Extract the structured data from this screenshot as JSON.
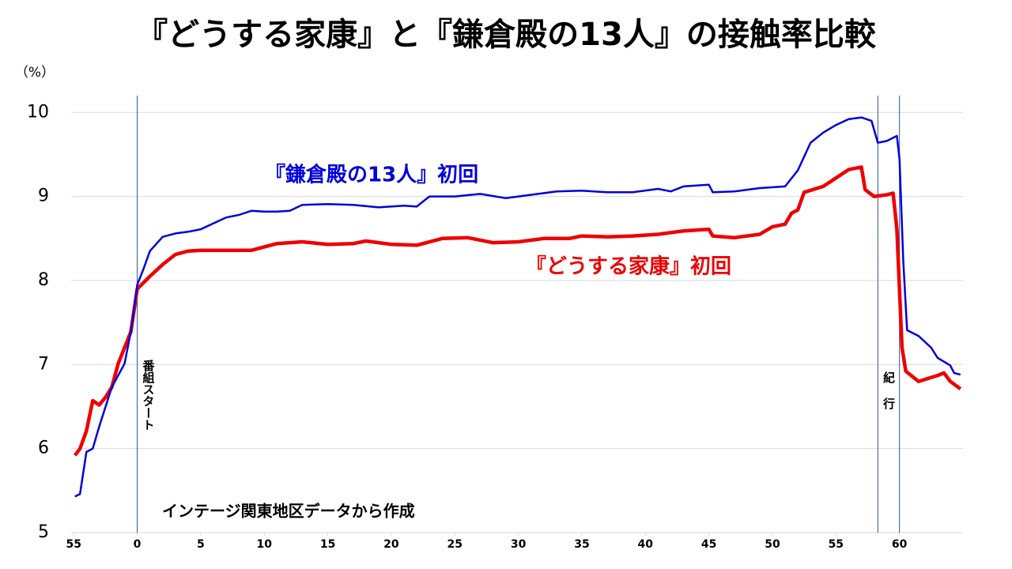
{
  "chart_data": {
    "type": "line",
    "title": "『どうする家康』と『鎌倉殿の13人』の接触率比較",
    "y_label": "（%）",
    "note": "インテージ関東地区データから作成",
    "xlim": [
      -5.2,
      65
    ],
    "xticks": [
      {
        "value": -5,
        "label": "55"
      },
      0,
      5,
      10,
      15,
      20,
      25,
      30,
      35,
      40,
      45,
      50,
      55,
      60
    ],
    "ylim": [
      5,
      10.2
    ],
    "yticks": [
      5,
      6,
      7,
      8,
      9,
      10
    ],
    "grid": true,
    "annotations": [
      {
        "text": "番組スタート",
        "x": [
          0
        ]
      },
      {
        "text": "紀行",
        "x": [
          58.3,
          60
        ]
      }
    ],
    "series": [
      {
        "name": "『鎌倉殿の13人』初回",
        "color": "#0000dd",
        "x": [
          -4.9,
          -4.5,
          -4,
          -3.5,
          -3,
          -2,
          -1,
          -0.5,
          0,
          0.5,
          1,
          2,
          3,
          4,
          5,
          6,
          7,
          8,
          9,
          10,
          11,
          12,
          13,
          15,
          17,
          19,
          21,
          22,
          23,
          25,
          27,
          29,
          31,
          33,
          35,
          37,
          39,
          41,
          42,
          43,
          45,
          45.3,
          47,
          49,
          51,
          52,
          53,
          54,
          55,
          56,
          57,
          57.8,
          58.3,
          59,
          59.8,
          60,
          60.3,
          60.6,
          61.5,
          62.5,
          63,
          64,
          64.3,
          64.8
        ],
        "values": [
          5.43,
          5.46,
          5.96,
          6.0,
          6.26,
          6.73,
          7.01,
          7.39,
          7.95,
          8.14,
          8.35,
          8.52,
          8.56,
          8.58,
          8.61,
          8.68,
          8.75,
          8.78,
          8.83,
          8.82,
          8.82,
          8.83,
          8.9,
          8.91,
          8.9,
          8.87,
          8.89,
          8.88,
          9.0,
          9.0,
          9.03,
          8.98,
          9.02,
          9.06,
          9.07,
          9.05,
          9.05,
          9.09,
          9.06,
          9.12,
          9.14,
          9.05,
          9.06,
          9.1,
          9.12,
          9.31,
          9.64,
          9.76,
          9.85,
          9.92,
          9.94,
          9.9,
          9.64,
          9.66,
          9.72,
          9.45,
          8.23,
          7.41,
          7.34,
          7.2,
          7.08,
          6.99,
          6.9,
          6.88
        ]
      },
      {
        "name": "『どうする家康』初回",
        "color": "#ee0000",
        "x": [
          -4.9,
          -4.5,
          -4,
          -3.5,
          -3,
          -2.5,
          -2,
          -1.5,
          -1,
          -0.5,
          0,
          1,
          2,
          3,
          4,
          5,
          7,
          9,
          11,
          13,
          15,
          17,
          18,
          20,
          22,
          24,
          26,
          28,
          30,
          32,
          34,
          35,
          37,
          39,
          41,
          43,
          45,
          45.3,
          47,
          49,
          50,
          51,
          51.5,
          52,
          52.5,
          54,
          55,
          56,
          57,
          57.3,
          58,
          59,
          59.5,
          59.8,
          60.2,
          60.5,
          61.5,
          63,
          63.5,
          64,
          64.8
        ],
        "values": [
          5.92,
          6.0,
          6.21,
          6.57,
          6.52,
          6.61,
          6.73,
          7.01,
          7.2,
          7.39,
          7.9,
          8.05,
          8.19,
          8.31,
          8.35,
          8.36,
          8.36,
          8.36,
          8.44,
          8.46,
          8.43,
          8.44,
          8.47,
          8.43,
          8.42,
          8.5,
          8.51,
          8.45,
          8.46,
          8.5,
          8.5,
          8.53,
          8.52,
          8.53,
          8.55,
          8.59,
          8.61,
          8.53,
          8.51,
          8.55,
          8.64,
          8.67,
          8.8,
          8.84,
          9.05,
          9.12,
          9.22,
          9.32,
          9.35,
          9.08,
          9.0,
          9.02,
          9.04,
          8.61,
          7.2,
          6.92,
          6.8,
          6.87,
          6.9,
          6.8,
          6.71
        ]
      }
    ]
  }
}
